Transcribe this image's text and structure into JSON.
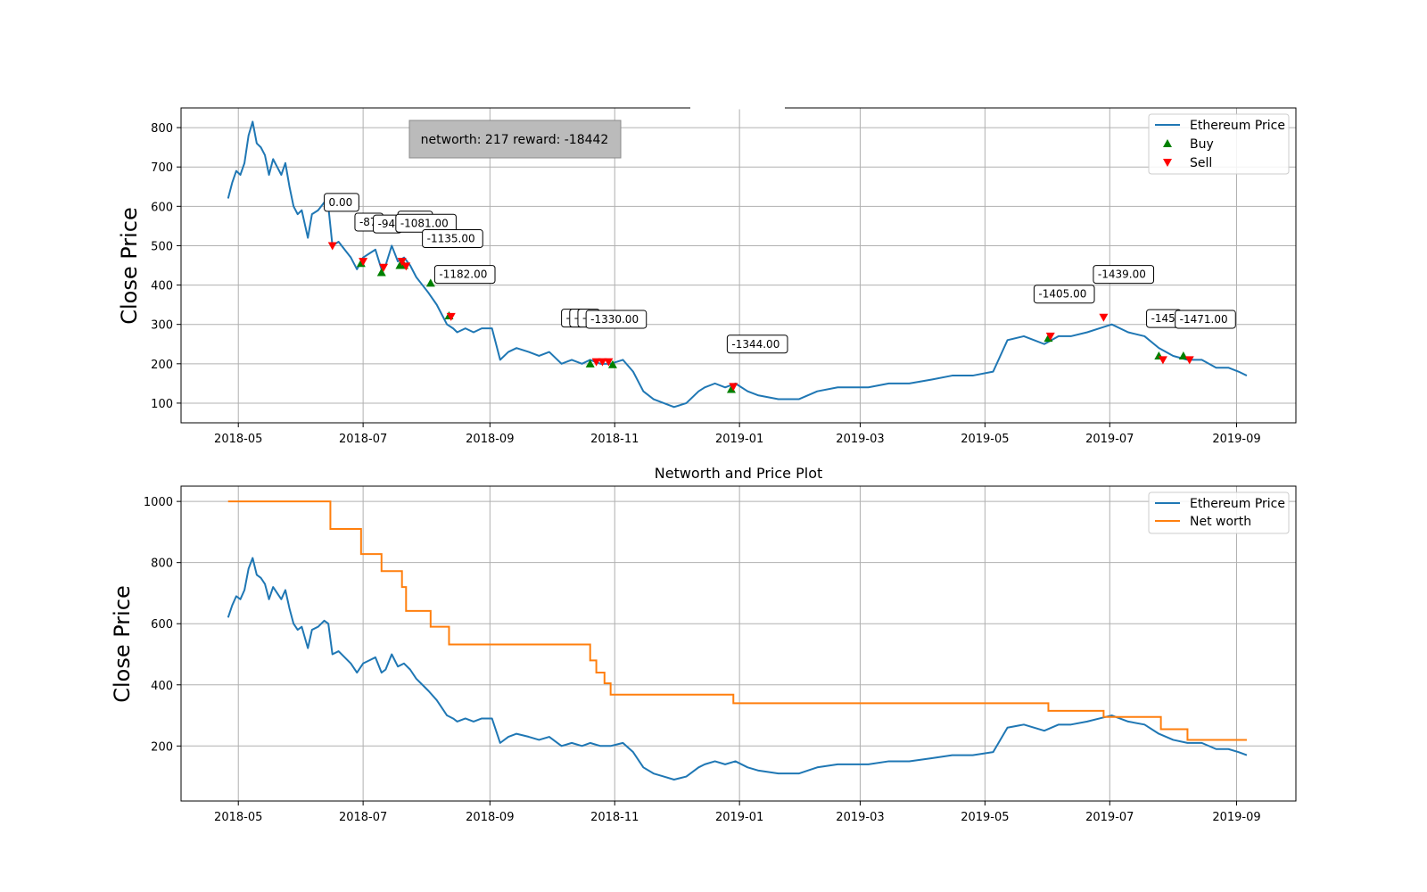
{
  "chart_data": [
    {
      "type": "line",
      "ylabel": "Close Price",
      "ylim": [
        50,
        850
      ],
      "xlim": [
        "2018-04-03",
        "2019-09-30"
      ],
      "yticks": [
        100,
        200,
        300,
        400,
        500,
        600,
        700,
        800
      ],
      "xticks": [
        "2018-05",
        "2018-07",
        "2018-09",
        "2018-11",
        "2019-01",
        "2019-03",
        "2019-05",
        "2019-07",
        "2019-09"
      ],
      "grid": true,
      "legend_position": "top-right",
      "info_box": "networth: 217 reward: -18442",
      "series": [
        {
          "name": "Ethereum Price",
          "color": "#1f77b4",
          "x": [
            "2018-04-26",
            "2018-04-28",
            "2018-04-30",
            "2018-05-02",
            "2018-05-04",
            "2018-05-06",
            "2018-05-08",
            "2018-05-10",
            "2018-05-12",
            "2018-05-14",
            "2018-05-16",
            "2018-05-18",
            "2018-05-20",
            "2018-05-22",
            "2018-05-24",
            "2018-05-26",
            "2018-05-28",
            "2018-05-30",
            "2018-06-01",
            "2018-06-04",
            "2018-06-06",
            "2018-06-09",
            "2018-06-12",
            "2018-06-14",
            "2018-06-16",
            "2018-06-19",
            "2018-06-22",
            "2018-06-25",
            "2018-06-28",
            "2018-07-01",
            "2018-07-04",
            "2018-07-07",
            "2018-07-10",
            "2018-07-12",
            "2018-07-15",
            "2018-07-18",
            "2018-07-21",
            "2018-07-24",
            "2018-07-27",
            "2018-07-30",
            "2018-08-02",
            "2018-08-06",
            "2018-08-09",
            "2018-08-11",
            "2018-08-14",
            "2018-08-16",
            "2018-08-20",
            "2018-08-24",
            "2018-08-28",
            "2018-09-02",
            "2018-09-06",
            "2018-09-10",
            "2018-09-14",
            "2018-09-20",
            "2018-09-25",
            "2018-09-30",
            "2018-10-06",
            "2018-10-11",
            "2018-10-16",
            "2018-10-20",
            "2018-10-25",
            "2018-10-30",
            "2018-11-05",
            "2018-11-10",
            "2018-11-15",
            "2018-11-20",
            "2018-11-25",
            "2018-11-30",
            "2018-12-06",
            "2018-12-12",
            "2018-12-15",
            "2018-12-20",
            "2018-12-25",
            "2018-12-30",
            "2019-01-05",
            "2019-01-10",
            "2019-01-20",
            "2019-01-30",
            "2019-02-08",
            "2019-02-18",
            "2019-02-25",
            "2019-03-05",
            "2019-03-15",
            "2019-03-25",
            "2019-04-05",
            "2019-04-15",
            "2019-04-25",
            "2019-05-05",
            "2019-05-12",
            "2019-05-20",
            "2019-05-30",
            "2019-06-06",
            "2019-06-12",
            "2019-06-20",
            "2019-06-26",
            "2019-07-02",
            "2019-07-10",
            "2019-07-18",
            "2019-07-25",
            "2019-08-01",
            "2019-08-08",
            "2019-08-15",
            "2019-08-22",
            "2019-08-28",
            "2019-09-02",
            "2019-09-06"
          ],
          "values": [
            620,
            660,
            690,
            680,
            710,
            780,
            815,
            760,
            750,
            730,
            680,
            720,
            700,
            680,
            710,
            650,
            600,
            580,
            590,
            520,
            580,
            590,
            610,
            600,
            500,
            510,
            490,
            470,
            440,
            470,
            480,
            490,
            440,
            450,
            500,
            460,
            470,
            450,
            420,
            400,
            380,
            350,
            320,
            300,
            290,
            280,
            290,
            280,
            290,
            290,
            210,
            230,
            240,
            230,
            220,
            230,
            200,
            210,
            200,
            210,
            200,
            200,
            210,
            180,
            130,
            110,
            100,
            90,
            100,
            130,
            140,
            150,
            140,
            150,
            130,
            120,
            110,
            110,
            130,
            140,
            140,
            140,
            150,
            150,
            160,
            170,
            170,
            180,
            260,
            270,
            250,
            270,
            270,
            280,
            290,
            300,
            280,
            270,
            240,
            220,
            210,
            210,
            190,
            190,
            180,
            170
          ]
        }
      ],
      "markers": {
        "buy": {
          "name": "Buy",
          "color": "#008000",
          "points": [
            [
              "2018-06-30",
              455
            ],
            [
              "2018-07-10",
              432
            ],
            [
              "2018-07-19",
              450
            ],
            [
              "2018-07-21",
              450
            ],
            [
              "2018-08-03",
              405
            ],
            [
              "2018-08-12",
              322
            ],
            [
              "2018-10-20",
              200
            ],
            [
              "2018-10-31",
              198
            ],
            [
              "2018-12-28",
              135
            ],
            [
              "2019-06-01",
              265
            ],
            [
              "2019-07-25",
              220
            ],
            [
              "2019-08-06",
              220
            ]
          ]
        },
        "sell": {
          "name": "Sell",
          "color": "#ff0000",
          "points": [
            [
              "2018-06-16",
              500
            ],
            [
              "2018-07-01",
              460
            ],
            [
              "2018-07-11",
              445
            ],
            [
              "2018-07-20",
              460
            ],
            [
              "2018-07-22",
              448
            ],
            [
              "2018-08-13",
              320
            ],
            [
              "2018-10-23",
              205
            ],
            [
              "2018-10-26",
              205
            ],
            [
              "2018-10-29",
              205
            ],
            [
              "2018-12-29",
              142
            ],
            [
              "2019-06-02",
              270
            ],
            [
              "2019-06-28",
              318
            ],
            [
              "2019-07-27",
              210
            ],
            [
              "2019-08-09",
              210
            ]
          ]
        }
      },
      "annotations": [
        {
          "label": "0.00",
          "x": "2018-06-12",
          "y": 610
        },
        {
          "label": "-87",
          "x": "2018-06-27",
          "y": 560
        },
        {
          "label": "-94",
          "x": "2018-07-06",
          "y": 555
        },
        {
          "label": "-999",
          "x": "2018-07-18",
          "y": 565
        },
        {
          "label": "-1081.00",
          "x": "2018-07-17",
          "y": 557
        },
        {
          "label": "-1135.00",
          "x": "2018-07-30",
          "y": 518
        },
        {
          "label": "-1182.00",
          "x": "2018-08-05",
          "y": 427
        },
        {
          "label": "-1",
          "x": "2018-10-06",
          "y": 316
        },
        {
          "label": "-1",
          "x": "2018-10-10",
          "y": 316
        },
        {
          "label": "-1",
          "x": "2018-10-14",
          "y": 316
        },
        {
          "label": "-1330.00",
          "x": "2018-10-18",
          "y": 313
        },
        {
          "label": "-1344.00",
          "x": "2018-12-26",
          "y": 250
        },
        {
          "label": "-1405.00",
          "x": "2019-05-25",
          "y": 377
        },
        {
          "label": "-1439.00",
          "x": "2019-06-23",
          "y": 427
        },
        {
          "label": "-145",
          "x": "2019-07-19",
          "y": 315
        },
        {
          "label": "-1471.00",
          "x": "2019-08-02",
          "y": 313
        }
      ]
    },
    {
      "type": "line",
      "title": "Networth and Price Plot",
      "ylabel": "Close Price",
      "ylim": [
        20,
        1050
      ],
      "xlim": [
        "2018-04-03",
        "2019-09-30"
      ],
      "yticks": [
        200,
        400,
        600,
        800,
        1000
      ],
      "xticks": [
        "2018-05",
        "2018-07",
        "2018-09",
        "2018-11",
        "2019-01",
        "2019-03",
        "2019-05",
        "2019-07",
        "2019-09"
      ],
      "grid": true,
      "legend_position": "top-right",
      "series": [
        {
          "name": "Ethereum Price",
          "color": "#1f77b4",
          "ref": "price"
        },
        {
          "name": "Net worth",
          "color": "#ff7f0e",
          "step": true,
          "x": [
            "2018-04-26",
            "2018-06-15",
            "2018-06-30",
            "2018-07-10",
            "2018-07-20",
            "2018-07-22",
            "2018-08-03",
            "2018-08-12",
            "2018-10-20",
            "2018-10-23",
            "2018-10-27",
            "2018-10-30",
            "2018-12-29",
            "2019-06-01",
            "2019-06-28",
            "2019-07-26",
            "2019-08-08",
            "2019-09-06"
          ],
          "values": [
            1000,
            910,
            828,
            772,
            720,
            642,
            590,
            532,
            480,
            440,
            405,
            368,
            340,
            315,
            295,
            255,
            220,
            220
          ]
        }
      ]
    }
  ]
}
